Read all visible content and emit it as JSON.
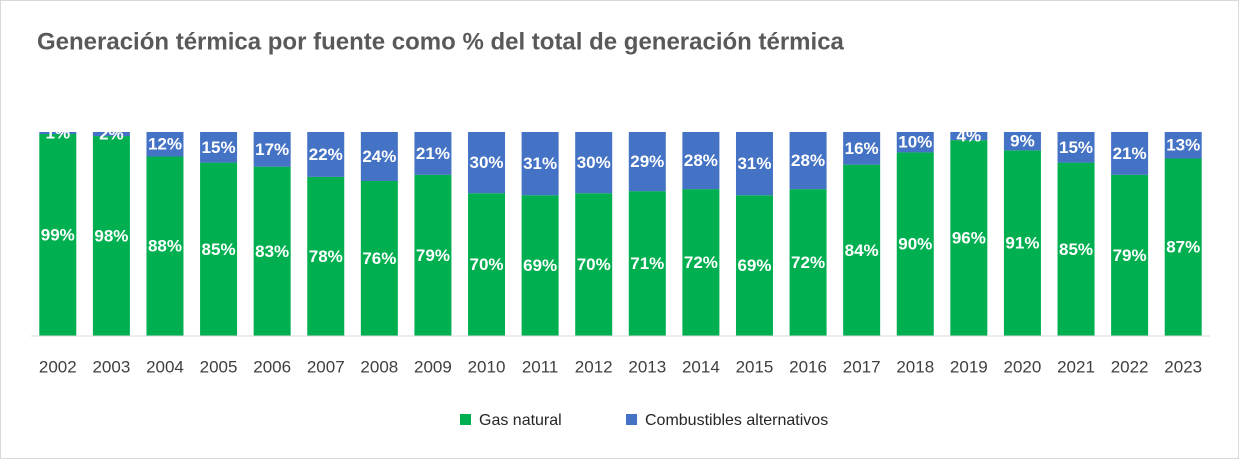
{
  "chart_data": {
    "type": "stacked_bar",
    "title": "Generación térmica por fuente como % del total de generación térmica",
    "categories": [
      "2002",
      "2003",
      "2004",
      "2005",
      "2006",
      "2007",
      "2008",
      "2009",
      "2010",
      "2011",
      "2012",
      "2013",
      "2014",
      "2015",
      "2016",
      "2017",
      "2018",
      "2019",
      "2020",
      "2021",
      "2022",
      "2023"
    ],
    "series": [
      {
        "name": "Gas natural",
        "color": "#00b050",
        "values": [
          99,
          98,
          88,
          85,
          83,
          78,
          76,
          79,
          70,
          69,
          70,
          71,
          72,
          69,
          72,
          84,
          90,
          96,
          91,
          85,
          79,
          87
        ],
        "value_labels": [
          "99%",
          "98%",
          "88%",
          "85%",
          "83%",
          "78%",
          "76%",
          "79%",
          "70%",
          "69%",
          "70%",
          "71%",
          "72%",
          "69%",
          "72%",
          "84%",
          "90%",
          "96%",
          "91%",
          "85%",
          "79%",
          "87%"
        ]
      },
      {
        "name": "Combustibles alternativos",
        "color": "#4472c4",
        "values": [
          1,
          2,
          12,
          15,
          17,
          22,
          24,
          21,
          30,
          31,
          30,
          29,
          28,
          31,
          28,
          16,
          10,
          4,
          9,
          15,
          21,
          13
        ],
        "value_labels": [
          "1%",
          "2%",
          "12%",
          "15%",
          "17%",
          "22%",
          "24%",
          "21%",
          "30%",
          "31%",
          "30%",
          "29%",
          "28%",
          "31%",
          "28%",
          "16%",
          "10%",
          "4%",
          "9%",
          "15%",
          "21%",
          "13%"
        ]
      }
    ],
    "ylim": [
      0,
      100
    ]
  }
}
